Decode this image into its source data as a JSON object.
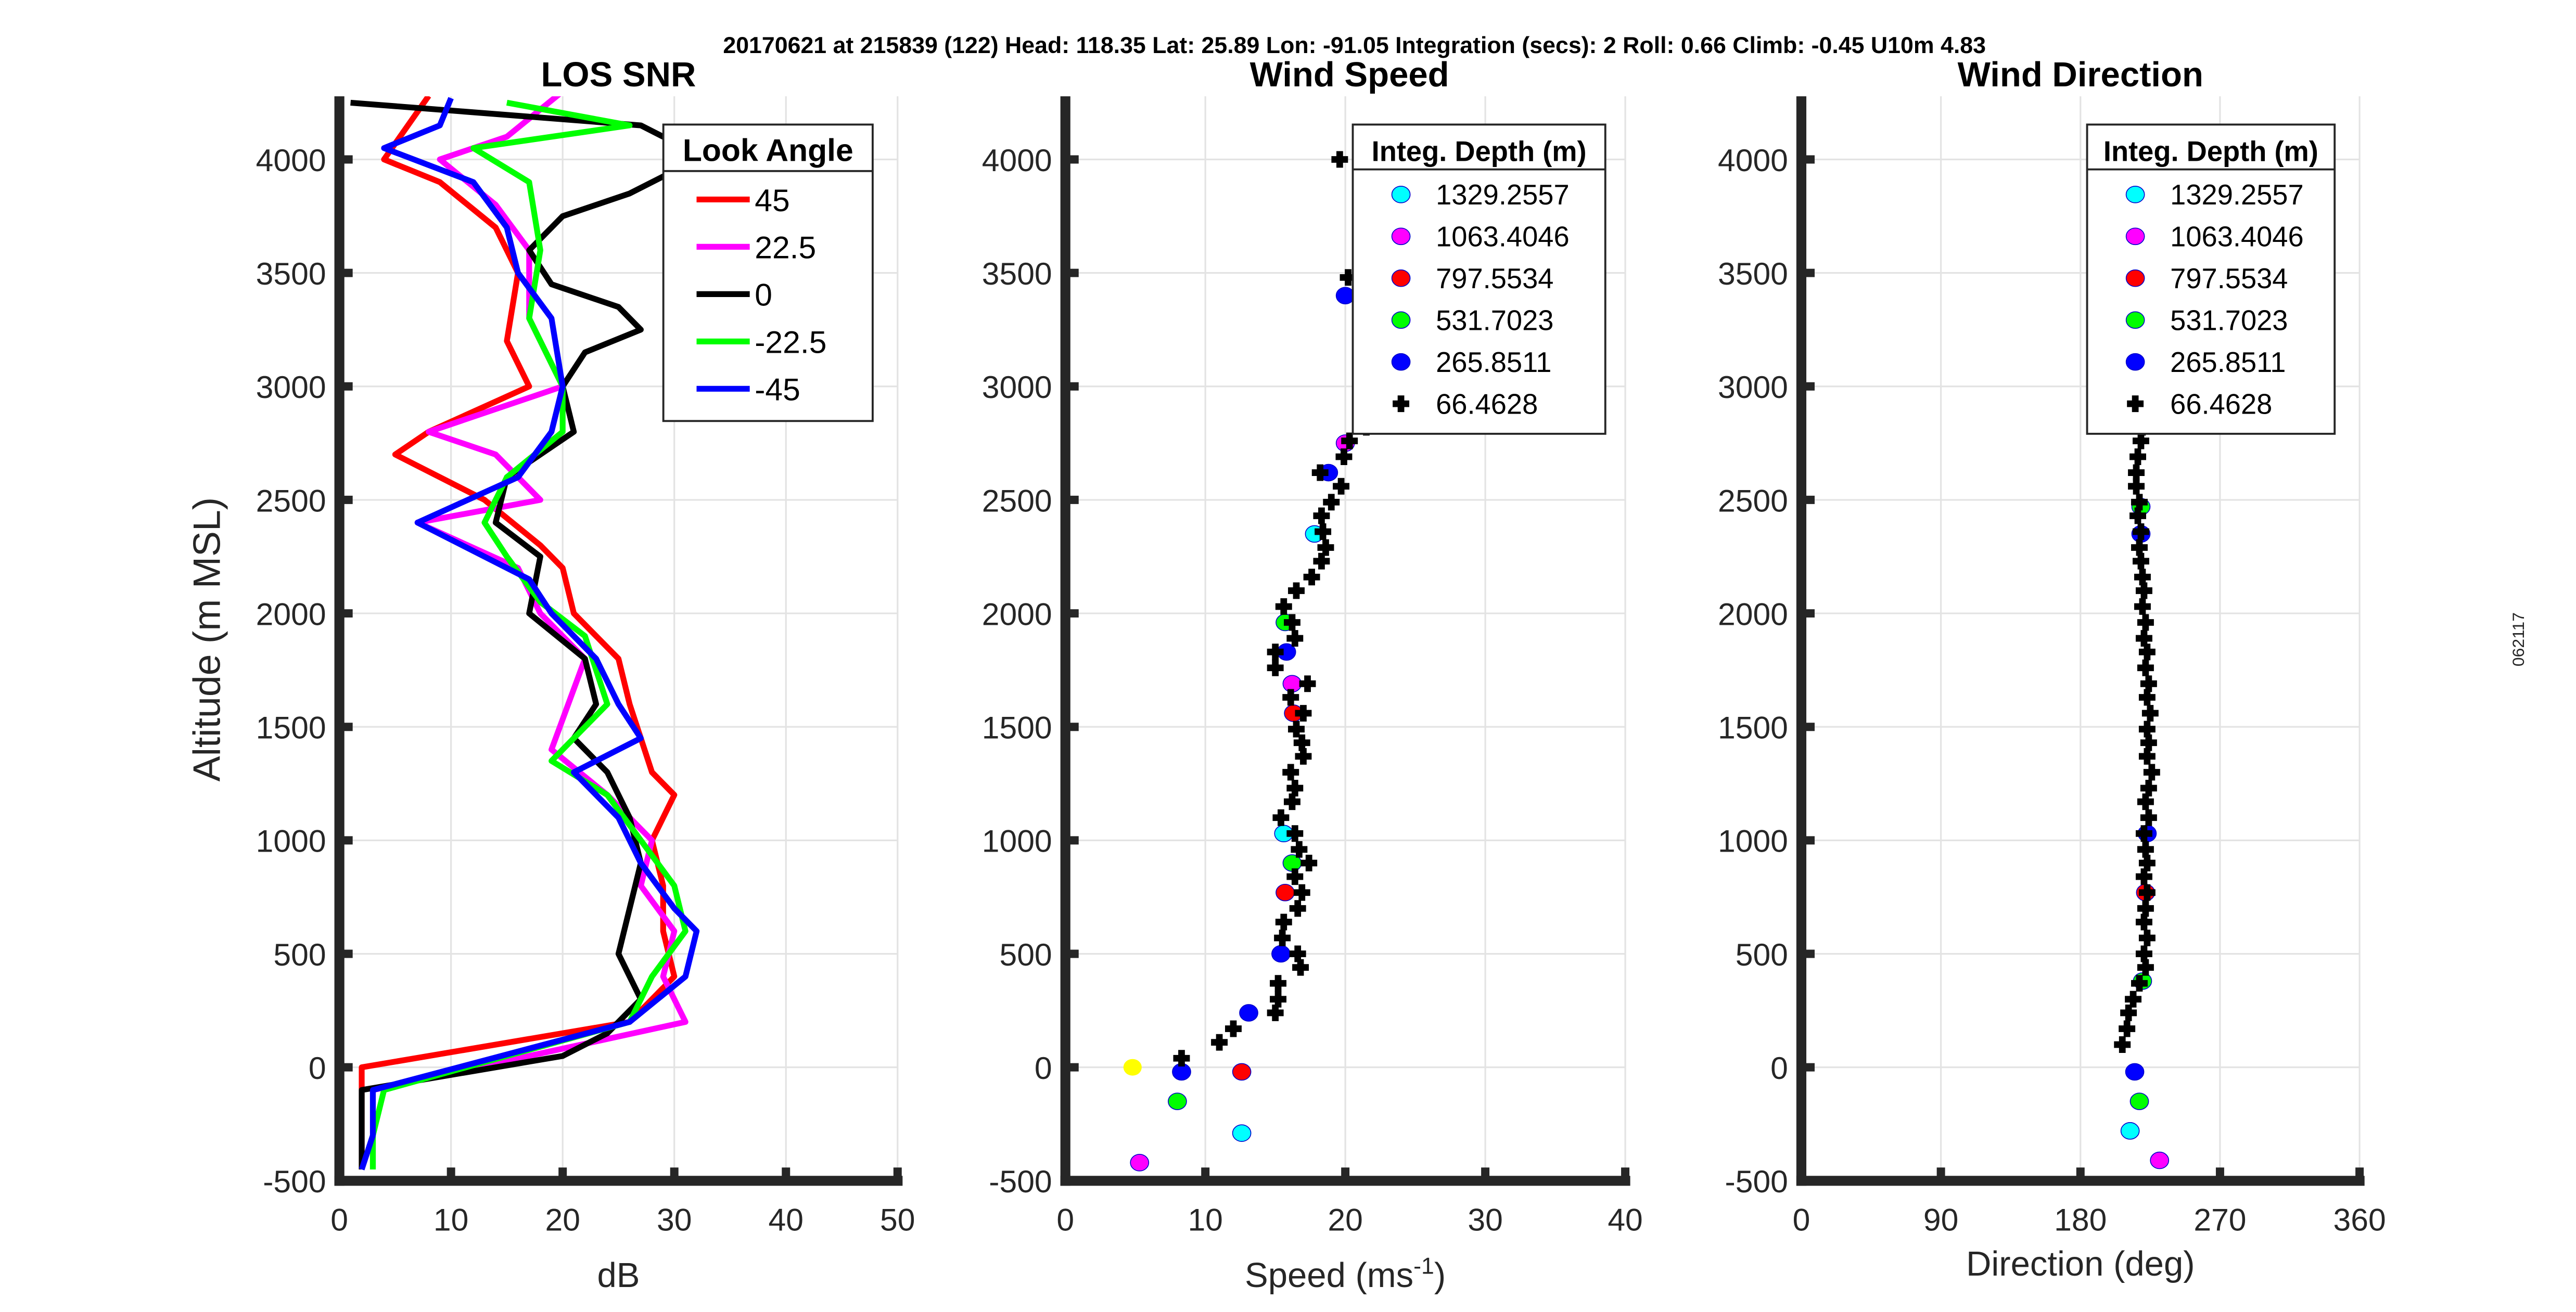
{
  "suptitle": "20170621 at 215839 (122)  Head: 118.35  Lat: 25.89  Lon: -91.05  Integration (secs): 2  Roll: 0.66  Climb: -0.45  U10m 4.83",
  "side_label": "062117",
  "chart_data": [
    {
      "type": "line",
      "title": "LOS SNR",
      "xlabel": "dB",
      "ylabel": "Altitude (m MSL)",
      "xlim": [
        0,
        50
      ],
      "ylim": [
        -500,
        4300
      ],
      "xticks": [
        "0",
        "10",
        "20",
        "30",
        "40",
        "50"
      ],
      "yticks": [
        "-500",
        "0",
        "500",
        "1000",
        "1500",
        "2000",
        "2500",
        "3000",
        "3500",
        "4000"
      ],
      "grid": true,
      "legend_title": "Look Angle",
      "legend_position": "top-right",
      "series": [
        {
          "name": "45",
          "color": "#ff0000",
          "alt": [
            4280,
            4000,
            3900,
            3700,
            3500,
            3200,
            3000,
            2800,
            2700,
            2500,
            2300,
            2200,
            2000,
            1800,
            1600,
            1300,
            1200,
            1000,
            800,
            600,
            400,
            200,
            0,
            -100,
            -300,
            -450
          ],
          "db": [
            8,
            4,
            9,
            14,
            16,
            15,
            17,
            8,
            5,
            13,
            18,
            20,
            21,
            25,
            26,
            28,
            30,
            28,
            29,
            29,
            30,
            26,
            2,
            2,
            2,
            2
          ]
        },
        {
          "name": "22.5",
          "color": "#ff00ff",
          "alt": [
            4300,
            4100,
            4000,
            3800,
            3600,
            3300,
            3000,
            2800,
            2700,
            2500,
            2400,
            2200,
            2000,
            1800,
            1400,
            1200,
            1000,
            800,
            600,
            400,
            200,
            -100,
            -300,
            -450
          ],
          "db": [
            20,
            15,
            9,
            14,
            17,
            17,
            20,
            8,
            14,
            18,
            7,
            16,
            18,
            22,
            19,
            24,
            28,
            27,
            30,
            29,
            31,
            3,
            3,
            3
          ]
        },
        {
          "name": "0",
          "color": "#000000",
          "alt": [
            4250,
            4150,
            4050,
            3950,
            3850,
            3750,
            3600,
            3450,
            3350,
            3250,
            3150,
            3000,
            2800,
            2600,
            2400,
            2250,
            2000,
            1800,
            1600,
            1450,
            1300,
            1100,
            900,
            700,
            500,
            300,
            150,
            50,
            -100,
            -300,
            -450
          ],
          "db": [
            1,
            27,
            31,
            30,
            26,
            20,
            17,
            19,
            25,
            27,
            22,
            20,
            21,
            15,
            14,
            18,
            17,
            22,
            23,
            21,
            24,
            26,
            27,
            26,
            25,
            27,
            24,
            20,
            2,
            2,
            2
          ]
        },
        {
          "name": "-22.5",
          "color": "#00ff00",
          "alt": [
            4250,
            4150,
            4050,
            3900,
            3600,
            3300,
            3000,
            2800,
            2600,
            2400,
            2250,
            2050,
            1900,
            1600,
            1350,
            1200,
            1000,
            800,
            600,
            400,
            200,
            -100,
            -300,
            -450
          ],
          "db": [
            15,
            26,
            12,
            17,
            18,
            17,
            20,
            20,
            15,
            13,
            15,
            18,
            22,
            24,
            19,
            24,
            27,
            30,
            31,
            28,
            26,
            4,
            3,
            3
          ]
        },
        {
          "name": "-45",
          "color": "#0000ff",
          "alt": [
            4270,
            4150,
            4050,
            3900,
            3700,
            3500,
            3300,
            3000,
            2800,
            2600,
            2400,
            2300,
            2150,
            2000,
            1800,
            1600,
            1450,
            1300,
            1100,
            900,
            700,
            600,
            400,
            200,
            -100,
            -300,
            -450
          ],
          "db": [
            10,
            9,
            4,
            12,
            15,
            16,
            19,
            20,
            19,
            16,
            7,
            11,
            17,
            19,
            23,
            25,
            27,
            21,
            25,
            27,
            30,
            32,
            31,
            26,
            3,
            3,
            2
          ]
        }
      ]
    },
    {
      "type": "scatter",
      "title": "Wind Speed",
      "xlabel": "Speed (ms",
      "xlabel_sup": "-1",
      "xlabel_close": ")",
      "xlim": [
        0,
        40
      ],
      "ylim": [
        -500,
        4300
      ],
      "xticks": [
        "0",
        "10",
        "20",
        "30",
        "40"
      ],
      "yticks": [
        "-500",
        "0",
        "500",
        "1000",
        "1500",
        "2000",
        "2500",
        "3000",
        "3500",
        "4000"
      ],
      "grid": true,
      "legend_title": "Integ. Depth (m)",
      "legend_position": "top-right",
      "series": [
        {
          "name": "1329.2557",
          "color": "#00ffff",
          "alt": [
            -290,
            1030,
            2350
          ],
          "value": [
            12.6,
            15.6,
            17.8
          ]
        },
        {
          "name": "1063.4046",
          "color": "#ff00ff",
          "alt": [
            -420,
            1690,
            2750
          ],
          "value": [
            5.3,
            16.2,
            20
          ]
        },
        {
          "name": "797.5534",
          "color": "#ff0000",
          "alt": [
            -20,
            770,
            1560
          ],
          "value": [
            12.6,
            15.7,
            16.3
          ]
        },
        {
          "name": "531.7023",
          "color": "#00ff00",
          "alt": [
            -150,
            900,
            1960
          ],
          "value": [
            8,
            16.2,
            15.7
          ]
        },
        {
          "name": "265.8511",
          "color": "#0000ff",
          "alt": [
            -20,
            240,
            500,
            1830,
            2620,
            3400
          ],
          "value": [
            8.3,
            13.1,
            15.4,
            15.8,
            18.8,
            20
          ]
        },
        {
          "name": "66.4628",
          "color": "#000000",
          "alt": [
            40,
            110,
            170,
            240,
            300,
            370,
            440,
            500,
            570,
            640,
            700,
            770,
            840,
            900,
            960,
            1030,
            1100,
            1170,
            1230,
            1300,
            1370,
            1430,
            1490,
            1560,
            1630,
            1690,
            1760,
            1830,
            1890,
            1960,
            2030,
            2100,
            2160,
            2230,
            2290,
            2360,
            2430,
            2490,
            2560,
            2620,
            2690,
            2760,
            2820,
            3480,
            4000
          ],
          "value": [
            8.3,
            11,
            12,
            15,
            15.2,
            15.2,
            16.8,
            16.6,
            15.5,
            15.6,
            16.6,
            16.9,
            16.4,
            17.4,
            16.7,
            16.4,
            15.4,
            16.2,
            16.4,
            16.1,
            17,
            16.9,
            16.5,
            17,
            16.1,
            17.3,
            15,
            15,
            16.4,
            16.2,
            15.6,
            16.5,
            17.6,
            18.3,
            18.6,
            18.4,
            18.3,
            19,
            19.7,
            18.2,
            19.9,
            20.3,
            21.5,
            20.2,
            19.6
          ]
        },
        {
          "name": "",
          "color": "#ffff00",
          "alt": [
            0
          ],
          "value": [
            4.8
          ]
        }
      ]
    },
    {
      "type": "scatter",
      "title": "Wind Direction",
      "xlabel": "Direction (deg)",
      "xlim": [
        0,
        360
      ],
      "ylim": [
        -500,
        4300
      ],
      "xticks": [
        "0",
        "90",
        "180",
        "270",
        "360"
      ],
      "yticks": [
        "-500",
        "0",
        "500",
        "1000",
        "1500",
        "2000",
        "2500",
        "3000",
        "3500",
        "4000"
      ],
      "grid": true,
      "legend_title": "Integ. Depth (m)",
      "legend_position": "top-right",
      "series": [
        {
          "name": "1329.2557",
          "color": "#00ffff",
          "alt": [
            -280
          ],
          "value": [
            212
          ]
        },
        {
          "name": "1063.4046",
          "color": "#ff00ff",
          "alt": [
            -410
          ],
          "value": [
            231
          ]
        },
        {
          "name": "797.5534",
          "color": "#ff0000",
          "alt": [
            770
          ],
          "value": [
            222
          ]
        },
        {
          "name": "531.7023",
          "color": "#00ff00",
          "alt": [
            -150,
            380,
            2470
          ],
          "value": [
            218,
            220,
            219
          ]
        },
        {
          "name": "265.8511",
          "color": "#0000ff",
          "alt": [
            -20,
            1030,
            2350
          ],
          "value": [
            215,
            223,
            219
          ]
        },
        {
          "name": "66.4628",
          "color": "#000000",
          "alt": [
            100,
            170,
            240,
            300,
            370,
            440,
            500,
            570,
            640,
            700,
            770,
            840,
            900,
            960,
            1030,
            1100,
            1170,
            1230,
            1300,
            1370,
            1430,
            1490,
            1560,
            1630,
            1690,
            1760,
            1830,
            1890,
            1960,
            2030,
            2100,
            2160,
            2230,
            2290,
            2360,
            2430,
            2490,
            2560,
            2620,
            2690,
            2760,
            2820,
            2900
          ],
          "value": [
            207,
            210,
            211,
            214,
            218,
            222,
            221,
            223,
            221,
            222,
            223,
            221,
            223,
            222,
            221,
            224,
            222,
            224,
            226,
            223,
            224,
            223,
            225,
            223,
            224,
            222,
            223,
            221,
            222,
            220,
            221,
            220,
            219,
            218,
            219,
            217,
            218,
            216,
            216,
            217,
            219,
            220,
            221
          ]
        }
      ]
    }
  ]
}
